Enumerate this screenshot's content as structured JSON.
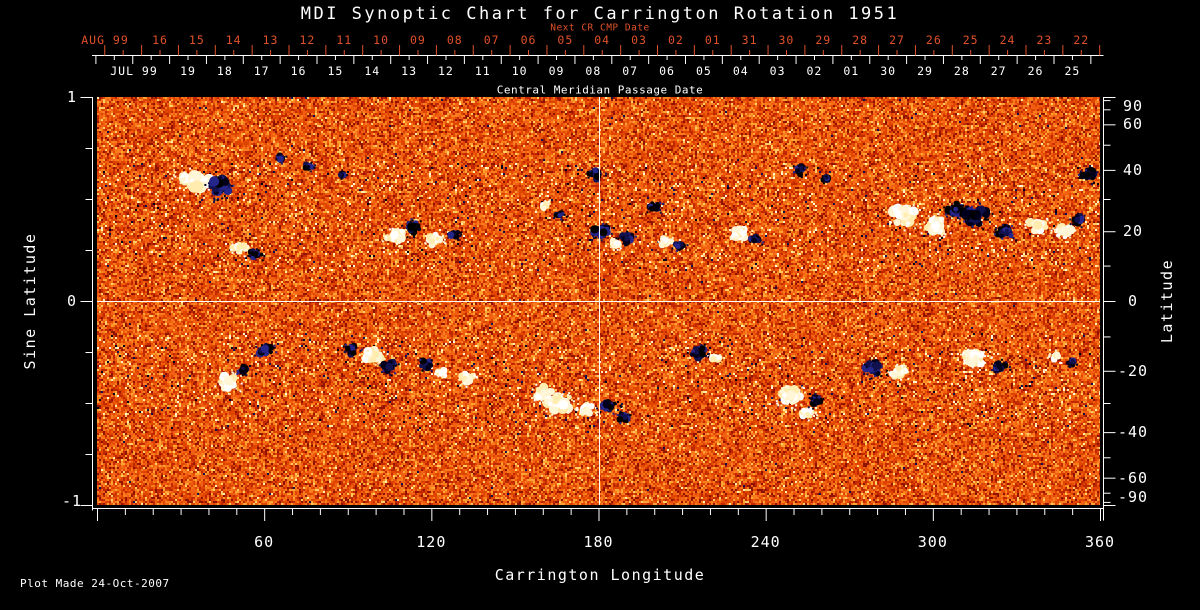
{
  "title": "MDI Synoptic Chart for Carrington Rotation 1951",
  "subtitle_next_cr": "Next CR CMP Date",
  "cmp_axis": {
    "label": "Central Meridian Passage Date",
    "next_cr": {
      "month_label": "AUG 99",
      "days": [
        "16",
        "15",
        "14",
        "13",
        "12",
        "11",
        "10",
        "09",
        "08",
        "07",
        "06",
        "05",
        "04",
        "03",
        "02",
        "01",
        "31",
        "30",
        "29",
        "28",
        "27",
        "26",
        "25",
        "24",
        "23",
        "22"
      ]
    },
    "current_cr": {
      "month_label": "JUL 99",
      "days": [
        "19",
        "18",
        "17",
        "16",
        "15",
        "14",
        "13",
        "12",
        "11",
        "10",
        "09",
        "08",
        "07",
        "06",
        "05",
        "04",
        "03",
        "02",
        "01",
        "30",
        "29",
        "28",
        "27",
        "26",
        "25"
      ]
    }
  },
  "left_axis": {
    "label": "Sine Latitude",
    "ticks": [
      "1",
      "0",
      "-1"
    ]
  },
  "right_axis": {
    "label": "Latitude",
    "ticks": [
      "90",
      "60",
      "40",
      "20",
      "0",
      "-20",
      "-40",
      "-60",
      "-90"
    ]
  },
  "bottom_axis": {
    "label": "Carrington Longitude",
    "ticks": [
      "60",
      "120",
      "180",
      "240",
      "300",
      "360"
    ]
  },
  "footer": {
    "plot_made": "Plot Made 24-Oct-2007"
  },
  "colors": {
    "background": "#000000",
    "axis_and_text": "#ffffff",
    "next_cr_accent": "#e0512a"
  },
  "chart_data": {
    "type": "heatmap",
    "title": "MDI Synoptic Chart for Carrington Rotation 1951",
    "description": "Full-disk solar magnetic field synoptic map (SOHO/MDI magnetogram) for Carrington rotation 1951. Mottled orange/red quiet-sun salt-and-pepper field with bright white/yellow positive-polarity and dark navy/black negative-polarity active regions concentrated in two latitude bands.",
    "x_axis": {
      "label": "Carrington Longitude",
      "range": [
        0,
        360
      ],
      "major_ticks": [
        0,
        60,
        120,
        180,
        240,
        300,
        360
      ],
      "labeled_ticks": [
        60,
        120,
        180,
        240,
        300,
        360
      ],
      "minor_tick_step_deg": 10
    },
    "y_axis_left": {
      "label": "Sine Latitude",
      "range": [
        -1,
        1
      ],
      "major_ticks": [
        1,
        0,
        -1
      ],
      "minor_tick_step": 0.25
    },
    "y_axis_right": {
      "label": "Latitude",
      "labeled_ticks_deg": [
        90,
        60,
        40,
        20,
        0,
        -20,
        -40,
        -60,
        -90
      ],
      "minor_tick_step_deg": 10,
      "mapping": "sine-of-latitude"
    },
    "top_time_axis": {
      "label": "Central Meridian Passage Date",
      "current_rotation_month": "JUL 99",
      "next_rotation_month": "AUG 99",
      "direction": "date decreases left-to-right"
    },
    "reference_lines": {
      "vertical_at_longitude_deg": 180,
      "horizontal_at_sine_latitude": 0,
      "color": "#ffffff"
    },
    "legend": "none",
    "grid": "off",
    "activity_bands_sine_lat": [
      [
        0.15,
        0.68
      ],
      [
        -0.62,
        -0.15
      ]
    ],
    "palette": {
      "quiet_sun": [
        "#8f1300",
        "#c22800",
        "#e04500",
        "#f06010",
        "#f97d1c",
        "#ffa333",
        "#ffcc66",
        "#ffeeaa"
      ],
      "positive_regions": [
        "#ffffff",
        "#fff6d8",
        "#ffecae"
      ],
      "negative_regions": [
        "#00001c",
        "#11114e",
        "#26268a",
        "#000000"
      ]
    },
    "active_regions": [
      {
        "lon": 35,
        "sin_lat": 0.59,
        "polarity": "positive",
        "size": 15
      },
      {
        "lon": 44,
        "sin_lat": 0.56,
        "polarity": "negative",
        "size": 11
      },
      {
        "lon": 51,
        "sin_lat": 0.26,
        "polarity": "positive",
        "size": 7
      },
      {
        "lon": 57,
        "sin_lat": 0.23,
        "polarity": "negative",
        "size": 6
      },
      {
        "lon": 66,
        "sin_lat": 0.7,
        "polarity": "negative",
        "size": 4
      },
      {
        "lon": 76,
        "sin_lat": 0.66,
        "polarity": "negative",
        "size": 4
      },
      {
        "lon": 88,
        "sin_lat": 0.62,
        "polarity": "negative",
        "size": 3
      },
      {
        "lon": 107,
        "sin_lat": 0.32,
        "polarity": "positive",
        "size": 9
      },
      {
        "lon": 113,
        "sin_lat": 0.36,
        "polarity": "negative",
        "size": 8
      },
      {
        "lon": 121,
        "sin_lat": 0.3,
        "polarity": "positive",
        "size": 8
      },
      {
        "lon": 128,
        "sin_lat": 0.33,
        "polarity": "negative",
        "size": 5
      },
      {
        "lon": 161,
        "sin_lat": 0.47,
        "polarity": "positive",
        "size": 5
      },
      {
        "lon": 166,
        "sin_lat": 0.42,
        "polarity": "negative",
        "size": 4
      },
      {
        "lon": 179,
        "sin_lat": 0.62,
        "polarity": "negative",
        "size": 7
      },
      {
        "lon": 181,
        "sin_lat": 0.34,
        "polarity": "negative",
        "size": 8
      },
      {
        "lon": 186,
        "sin_lat": 0.28,
        "polarity": "positive",
        "size": 5
      },
      {
        "lon": 190,
        "sin_lat": 0.31,
        "polarity": "negative",
        "size": 7
      },
      {
        "lon": 200,
        "sin_lat": 0.46,
        "polarity": "negative",
        "size": 6
      },
      {
        "lon": 204,
        "sin_lat": 0.29,
        "polarity": "positive",
        "size": 6
      },
      {
        "lon": 209,
        "sin_lat": 0.27,
        "polarity": "negative",
        "size": 5
      },
      {
        "lon": 231,
        "sin_lat": 0.33,
        "polarity": "positive",
        "size": 8
      },
      {
        "lon": 236,
        "sin_lat": 0.3,
        "polarity": "negative",
        "size": 5
      },
      {
        "lon": 252,
        "sin_lat": 0.64,
        "polarity": "negative",
        "size": 6
      },
      {
        "lon": 262,
        "sin_lat": 0.6,
        "polarity": "negative",
        "size": 4
      },
      {
        "lon": 290,
        "sin_lat": 0.42,
        "polarity": "positive",
        "size": 13
      },
      {
        "lon": 301,
        "sin_lat": 0.37,
        "polarity": "positive",
        "size": 11
      },
      {
        "lon": 308,
        "sin_lat": 0.45,
        "polarity": "negative",
        "size": 8
      },
      {
        "lon": 315,
        "sin_lat": 0.42,
        "polarity": "negative",
        "size": 13
      },
      {
        "lon": 326,
        "sin_lat": 0.34,
        "polarity": "negative",
        "size": 9
      },
      {
        "lon": 338,
        "sin_lat": 0.37,
        "polarity": "positive",
        "size": 10
      },
      {
        "lon": 347,
        "sin_lat": 0.34,
        "polarity": "positive",
        "size": 8
      },
      {
        "lon": 352,
        "sin_lat": 0.4,
        "polarity": "negative",
        "size": 6
      },
      {
        "lon": 356,
        "sin_lat": 0.62,
        "polarity": "negative",
        "size": 8
      },
      {
        "lon": 47,
        "sin_lat": -0.4,
        "polarity": "positive",
        "size": 10
      },
      {
        "lon": 52,
        "sin_lat": -0.34,
        "polarity": "negative",
        "size": 5
      },
      {
        "lon": 60,
        "sin_lat": -0.24,
        "polarity": "negative",
        "size": 8
      },
      {
        "lon": 91,
        "sin_lat": -0.24,
        "polarity": "negative",
        "size": 7
      },
      {
        "lon": 99,
        "sin_lat": -0.27,
        "polarity": "positive",
        "size": 9
      },
      {
        "lon": 105,
        "sin_lat": -0.32,
        "polarity": "negative",
        "size": 7
      },
      {
        "lon": 118,
        "sin_lat": -0.31,
        "polarity": "negative",
        "size": 7
      },
      {
        "lon": 124,
        "sin_lat": -0.35,
        "polarity": "positive",
        "size": 5
      },
      {
        "lon": 133,
        "sin_lat": -0.38,
        "polarity": "positive",
        "size": 7
      },
      {
        "lon": 160,
        "sin_lat": -0.45,
        "polarity": "positive",
        "size": 9
      },
      {
        "lon": 166,
        "sin_lat": -0.5,
        "polarity": "positive",
        "size": 13
      },
      {
        "lon": 175,
        "sin_lat": -0.53,
        "polarity": "positive",
        "size": 8
      },
      {
        "lon": 184,
        "sin_lat": -0.52,
        "polarity": "negative",
        "size": 8
      },
      {
        "lon": 189,
        "sin_lat": -0.57,
        "polarity": "negative",
        "size": 5
      },
      {
        "lon": 216,
        "sin_lat": -0.25,
        "polarity": "negative",
        "size": 8
      },
      {
        "lon": 222,
        "sin_lat": -0.28,
        "polarity": "positive",
        "size": 4
      },
      {
        "lon": 249,
        "sin_lat": -0.46,
        "polarity": "positive",
        "size": 12
      },
      {
        "lon": 255,
        "sin_lat": -0.55,
        "polarity": "positive",
        "size": 6
      },
      {
        "lon": 258,
        "sin_lat": -0.49,
        "polarity": "negative",
        "size": 7
      },
      {
        "lon": 279,
        "sin_lat": -0.33,
        "polarity": "negative",
        "size": 9
      },
      {
        "lon": 288,
        "sin_lat": -0.35,
        "polarity": "positive",
        "size": 8
      },
      {
        "lon": 315,
        "sin_lat": -0.28,
        "polarity": "positive",
        "size": 10
      },
      {
        "lon": 324,
        "sin_lat": -0.32,
        "polarity": "negative",
        "size": 7
      },
      {
        "lon": 344,
        "sin_lat": -0.27,
        "polarity": "positive",
        "size": 6
      },
      {
        "lon": 350,
        "sin_lat": -0.3,
        "polarity": "negative",
        "size": 4
      }
    ]
  }
}
